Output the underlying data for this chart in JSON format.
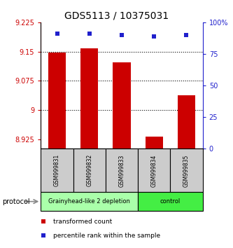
{
  "title": "GDS5113 / 10375031",
  "samples": [
    "GSM999831",
    "GSM999832",
    "GSM999833",
    "GSM999834",
    "GSM999835"
  ],
  "bar_values": [
    9.148,
    9.158,
    9.122,
    8.931,
    9.038
  ],
  "scatter_values": [
    91,
    91,
    90,
    89,
    90
  ],
  "ylim_left": [
    8.9,
    9.225
  ],
  "ylim_right": [
    0,
    100
  ],
  "yticks_left": [
    8.925,
    9.0,
    9.075,
    9.15,
    9.225
  ],
  "ytick_labels_left": [
    "8.925",
    "9",
    "9.075",
    "9.15",
    "9.225"
  ],
  "yticks_right": [
    0,
    25,
    50,
    75,
    100
  ],
  "ytick_labels_right": [
    "0",
    "25",
    "50",
    "75",
    "100%"
  ],
  "bar_color": "#cc0000",
  "scatter_color": "#2020cc",
  "bar_bottom": 8.9,
  "groups": [
    {
      "label": "Grainyhead-like 2 depletion",
      "samples": [
        0,
        1,
        2
      ],
      "color": "#aaffaa",
      "edgecolor": "#000000"
    },
    {
      "label": "control",
      "samples": [
        3,
        4
      ],
      "color": "#44ee44",
      "edgecolor": "#000000"
    }
  ],
  "protocol_label": "protocol",
  "legend_bar_label": "transformed count",
  "legend_scatter_label": "percentile rank within the sample",
  "grid_linestyle": "dotted",
  "grid_linewidth": 0.8,
  "sample_box_color": "#cccccc",
  "left_axis_color": "#cc0000",
  "right_axis_color": "#2020cc",
  "bar_width": 0.55,
  "title_fontsize": 10
}
